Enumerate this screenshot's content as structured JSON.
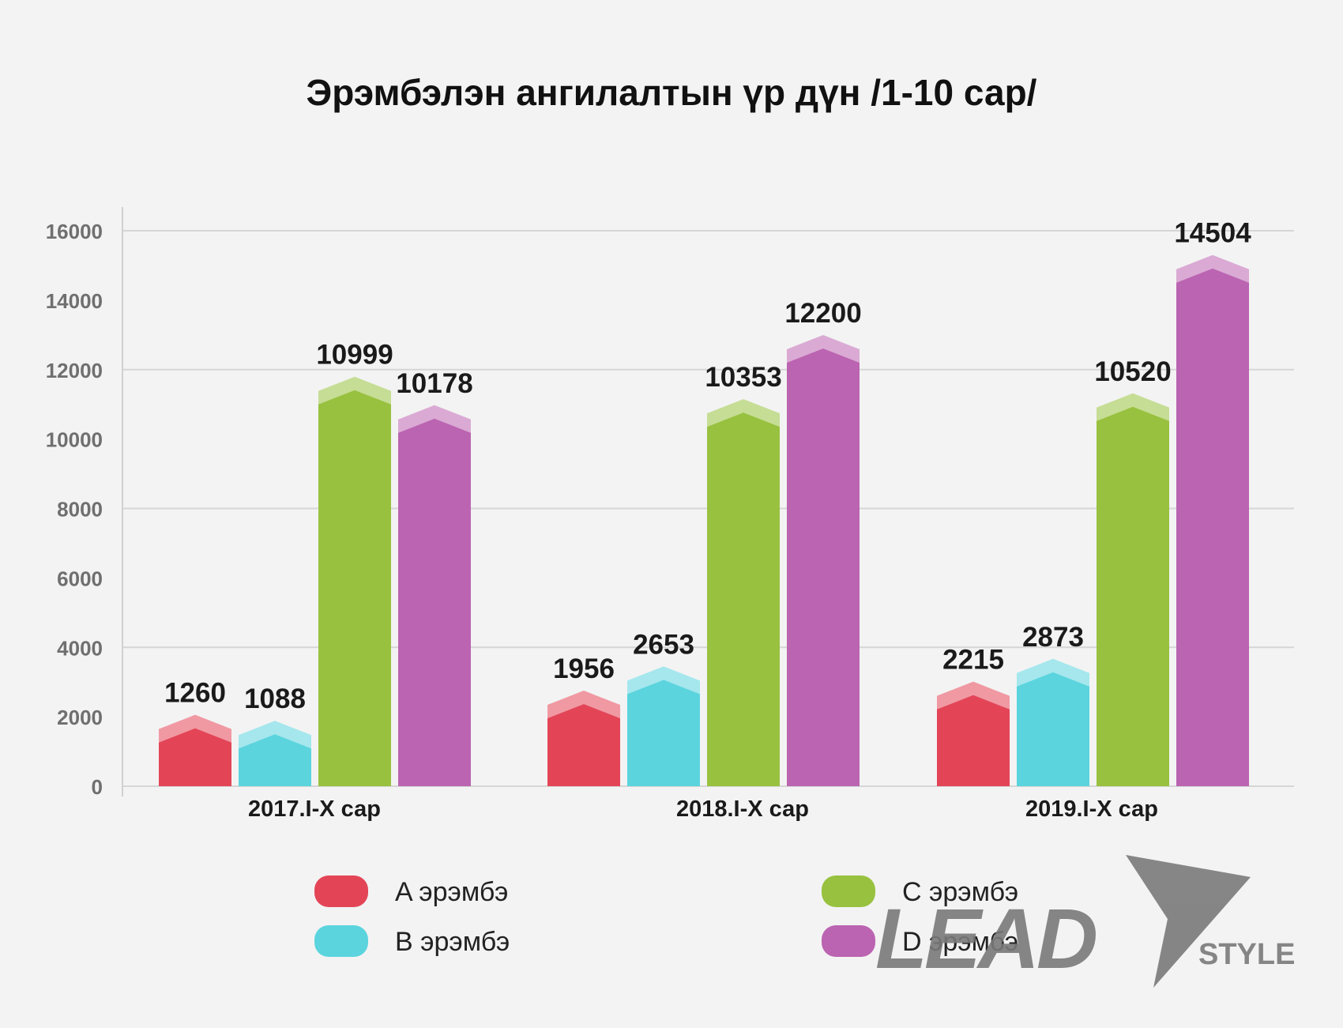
{
  "chart_data": {
    "type": "bar",
    "title": "Эрэмбэлэн ангилалтын үр дүн /1-10 сар/",
    "categories": [
      "2017.I-X сар",
      "2018.I-X сар",
      "2019.I-X сар"
    ],
    "series": [
      {
        "name": "A эрэмбэ",
        "color": "#e34557",
        "values": [
          1260,
          1956,
          2215
        ]
      },
      {
        "name": "B эрэмбэ",
        "color": "#5bd4de",
        "values": [
          1088,
          2653,
          2873
        ]
      },
      {
        "name": "C эрэмбэ",
        "color": "#98c13f",
        "values": [
          10999,
          10353,
          10520
        ]
      },
      {
        "name": "D эрэмбэ",
        "color": "#bb64b1",
        "values": [
          10178,
          12200,
          14504
        ]
      }
    ],
    "yticks": [
      0,
      2000,
      4000,
      6000,
      8000,
      10000,
      12000,
      14000,
      16000
    ],
    "ylim": [
      0,
      16000
    ],
    "grid": true,
    "legend_position": "bottom"
  },
  "logo": {
    "wordmark": "LEAD",
    "sub": "STYLE",
    "color": "#7a7a7a"
  }
}
